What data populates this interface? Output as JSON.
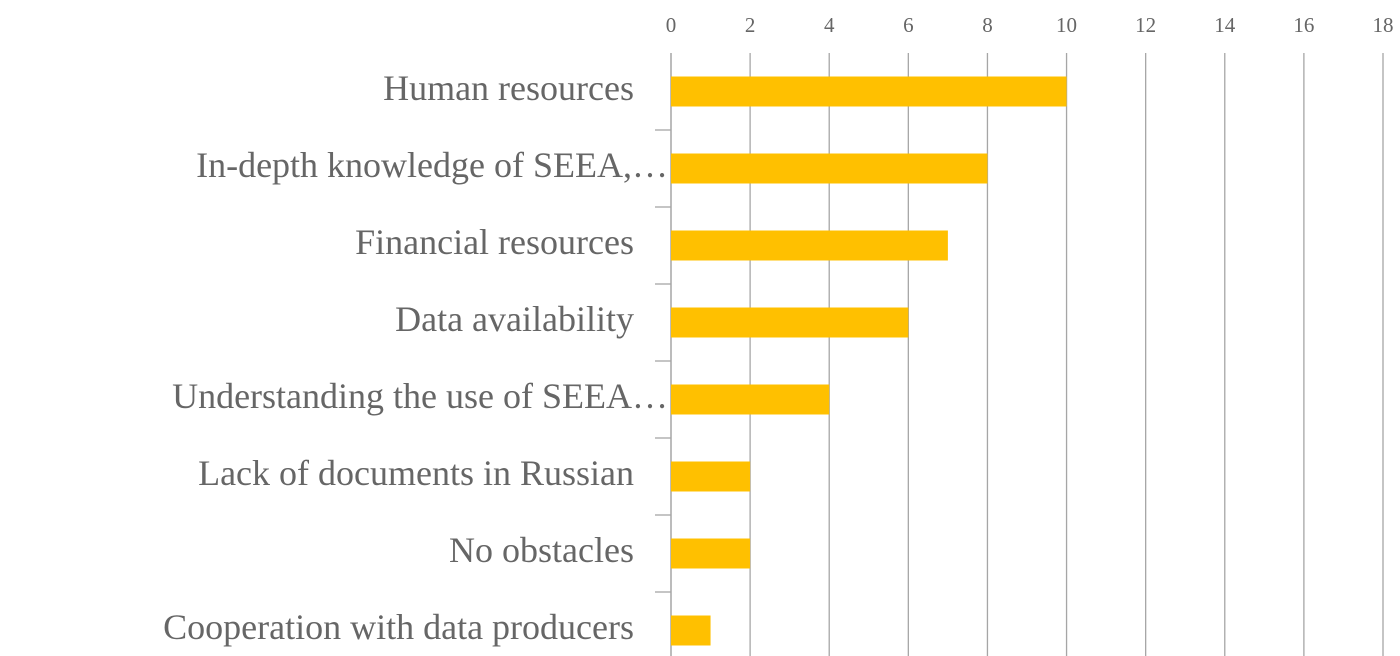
{
  "chart_data": {
    "type": "bar",
    "orientation": "horizontal",
    "categories": [
      "Human resources",
      "In-depth knowledge of SEEA,…",
      "Financial resources",
      "Data availability",
      "Understanding the use of SEEA…",
      "Lack of documents in Russian",
      "No obstacles",
      "Cooperation with data producers"
    ],
    "values": [
      10,
      8,
      7,
      6,
      4,
      2,
      2,
      1
    ],
    "color": "#ffc000",
    "xlim": [
      0,
      18
    ],
    "xticks": [
      0,
      2,
      4,
      6,
      8,
      10,
      12,
      14,
      16,
      18
    ],
    "grid": true
  }
}
